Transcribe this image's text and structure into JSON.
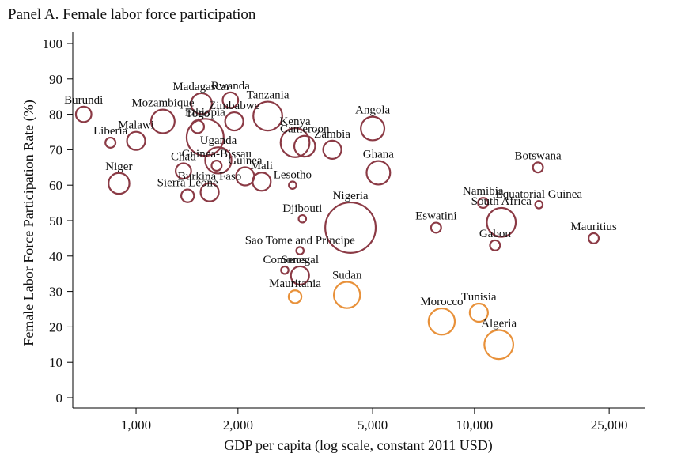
{
  "chart_data": {
    "type": "scatter",
    "title": "Panel A. Female labor force participation",
    "xlabel": "GDP per capita (log scale, constant 2011 USD)",
    "ylabel": "Female Labor Force Participation Rate (%)",
    "xscale": "log",
    "xlim": [
      650,
      32000
    ],
    "ylim": [
      0,
      100
    ],
    "xticks": [
      1000,
      2000,
      5000,
      10000,
      25000
    ],
    "xtick_labels": [
      "1,000",
      "2,000",
      "5,000",
      "10,000",
      "25,000"
    ],
    "yticks": [
      0,
      10,
      20,
      30,
      40,
      50,
      60,
      70,
      80,
      90,
      100
    ],
    "grid": false,
    "legend": "none",
    "bubble_size": "relative",
    "colors": {
      "sub_saharan": "#8b3a45",
      "north_africa": "#e8913a"
    },
    "points": [
      {
        "label": "Burundi",
        "x": 700,
        "y": 80,
        "size": 4,
        "group": "sub_saharan"
      },
      {
        "label": "Liberia",
        "x": 840,
        "y": 72,
        "size": 2,
        "group": "sub_saharan"
      },
      {
        "label": "Malawi",
        "x": 1000,
        "y": 72.5,
        "size": 5,
        "group": "sub_saharan"
      },
      {
        "label": "Niger",
        "x": 890,
        "y": 60.5,
        "size": 6,
        "group": "sub_saharan"
      },
      {
        "label": "Mozambique",
        "x": 1200,
        "y": 78,
        "size": 7,
        "group": "sub_saharan"
      },
      {
        "label": "Togo",
        "x": 1520,
        "y": 76.5,
        "size": 3,
        "group": "sub_saharan"
      },
      {
        "label": "Madagascar",
        "x": 1560,
        "y": 83,
        "size": 6,
        "group": "sub_saharan"
      },
      {
        "label": "Rwanda",
        "x": 1900,
        "y": 84,
        "size": 4,
        "group": "sub_saharan"
      },
      {
        "label": "Zimbabwe",
        "x": 1950,
        "y": 78,
        "size": 5,
        "group": "sub_saharan"
      },
      {
        "label": "Tanzania",
        "x": 2450,
        "y": 79.5,
        "size": 9,
        "group": "sub_saharan"
      },
      {
        "label": "Ethiopia",
        "x": 1600,
        "y": 73.5,
        "size": 12,
        "group": "sub_saharan"
      },
      {
        "label": "Chad",
        "x": 1380,
        "y": 64,
        "size": 4,
        "group": "sub_saharan"
      },
      {
        "label": "Guinea-Bissau",
        "x": 1730,
        "y": 65.5,
        "size": 2,
        "group": "sub_saharan"
      },
      {
        "label": "Uganda",
        "x": 1750,
        "y": 67,
        "size": 8,
        "group": "sub_saharan"
      },
      {
        "label": "Sierra Leone",
        "x": 1420,
        "y": 57,
        "size": 3,
        "group": "sub_saharan"
      },
      {
        "label": "Burkina Faso",
        "x": 1650,
        "y": 58,
        "size": 5,
        "group": "sub_saharan"
      },
      {
        "label": "Guinea",
        "x": 2100,
        "y": 62.5,
        "size": 5,
        "group": "sub_saharan"
      },
      {
        "label": "Mali",
        "x": 2350,
        "y": 61,
        "size": 5,
        "group": "sub_saharan"
      },
      {
        "label": "Lesotho",
        "x": 2900,
        "y": 60,
        "size": 1,
        "group": "sub_saharan"
      },
      {
        "label": "Kenya",
        "x": 2950,
        "y": 72,
        "size": 9,
        "group": "sub_saharan"
      },
      {
        "label": "Cameroon",
        "x": 3150,
        "y": 71,
        "size": 6,
        "group": "sub_saharan"
      },
      {
        "label": "Zambia",
        "x": 3800,
        "y": 70,
        "size": 5,
        "group": "sub_saharan"
      },
      {
        "label": "Angola",
        "x": 5000,
        "y": 76,
        "size": 7,
        "group": "sub_saharan"
      },
      {
        "label": "Ghana",
        "x": 5200,
        "y": 63.5,
        "size": 7,
        "group": "sub_saharan"
      },
      {
        "label": "Djibouti",
        "x": 3100,
        "y": 50.5,
        "size": 1,
        "group": "sub_saharan"
      },
      {
        "label": "Nigeria",
        "x": 4300,
        "y": 48,
        "size": 17,
        "group": "sub_saharan"
      },
      {
        "label": "Sao Tome and Principe",
        "x": 3050,
        "y": 41.5,
        "size": 1,
        "group": "sub_saharan"
      },
      {
        "label": "Comoros",
        "x": 2750,
        "y": 36,
        "size": 1,
        "group": "sub_saharan"
      },
      {
        "label": "Senegal",
        "x": 3050,
        "y": 34.5,
        "size": 5,
        "group": "sub_saharan"
      },
      {
        "label": "Eswatini",
        "x": 7700,
        "y": 48,
        "size": 2,
        "group": "sub_saharan"
      },
      {
        "label": "Namibia",
        "x": 10600,
        "y": 55,
        "size": 2,
        "group": "sub_saharan"
      },
      {
        "label": "South Africa",
        "x": 12000,
        "y": 49.5,
        "size": 9,
        "group": "sub_saharan"
      },
      {
        "label": "Gabon",
        "x": 11500,
        "y": 43,
        "size": 2,
        "group": "sub_saharan"
      },
      {
        "label": "Equatorial Guinea",
        "x": 15500,
        "y": 54.5,
        "size": 1,
        "group": "sub_saharan"
      },
      {
        "label": "Botswana",
        "x": 15400,
        "y": 65,
        "size": 2,
        "group": "sub_saharan"
      },
      {
        "label": "Mauritius",
        "x": 22500,
        "y": 45,
        "size": 2,
        "group": "sub_saharan"
      },
      {
        "label": "Mauritania",
        "x": 2950,
        "y": 28.5,
        "size": 3,
        "group": "north_africa"
      },
      {
        "label": "Sudan",
        "x": 4200,
        "y": 29,
        "size": 8,
        "group": "north_africa"
      },
      {
        "label": "Morocco",
        "x": 8000,
        "y": 21.5,
        "size": 8,
        "group": "north_africa"
      },
      {
        "label": "Tunisia",
        "x": 10300,
        "y": 24,
        "size": 5,
        "group": "north_africa"
      },
      {
        "label": "Algeria",
        "x": 11800,
        "y": 15,
        "size": 9,
        "group": "north_africa"
      }
    ]
  }
}
